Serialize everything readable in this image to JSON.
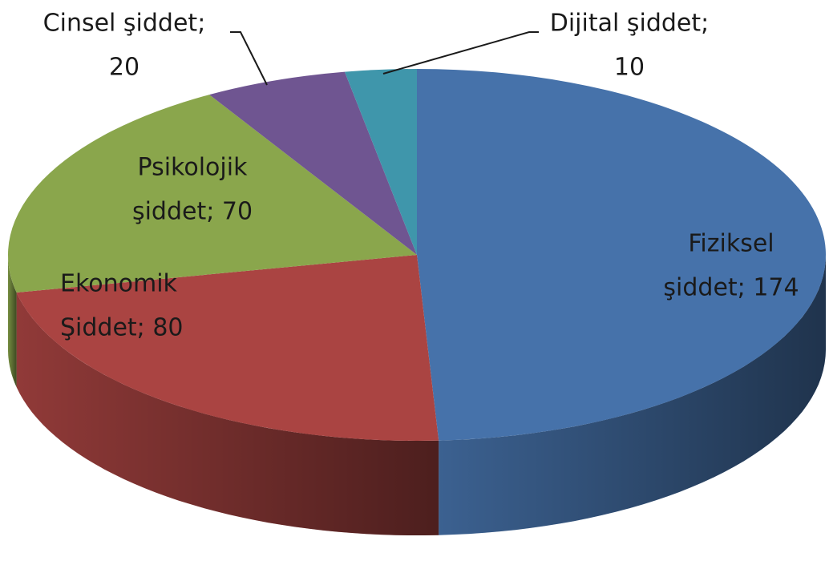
{
  "chart_data": {
    "type": "pie3d",
    "values": [
      174,
      80,
      70,
      20,
      10
    ],
    "value_labels": [
      [
        "Fiziksel",
        "şiddet; 174"
      ],
      [
        "Ekonomik",
        "Şiddet; 80"
      ],
      [
        "Psikolojik",
        "şiddet; 70"
      ],
      [
        "Cinsel şiddet;",
        "20"
      ],
      [
        "Dijital şiddet;",
        "10"
      ]
    ],
    "colors": [
      "#4672aa",
      "#aa4442",
      "#8aa64c",
      "#6f5591",
      "#3f96ab"
    ]
  }
}
